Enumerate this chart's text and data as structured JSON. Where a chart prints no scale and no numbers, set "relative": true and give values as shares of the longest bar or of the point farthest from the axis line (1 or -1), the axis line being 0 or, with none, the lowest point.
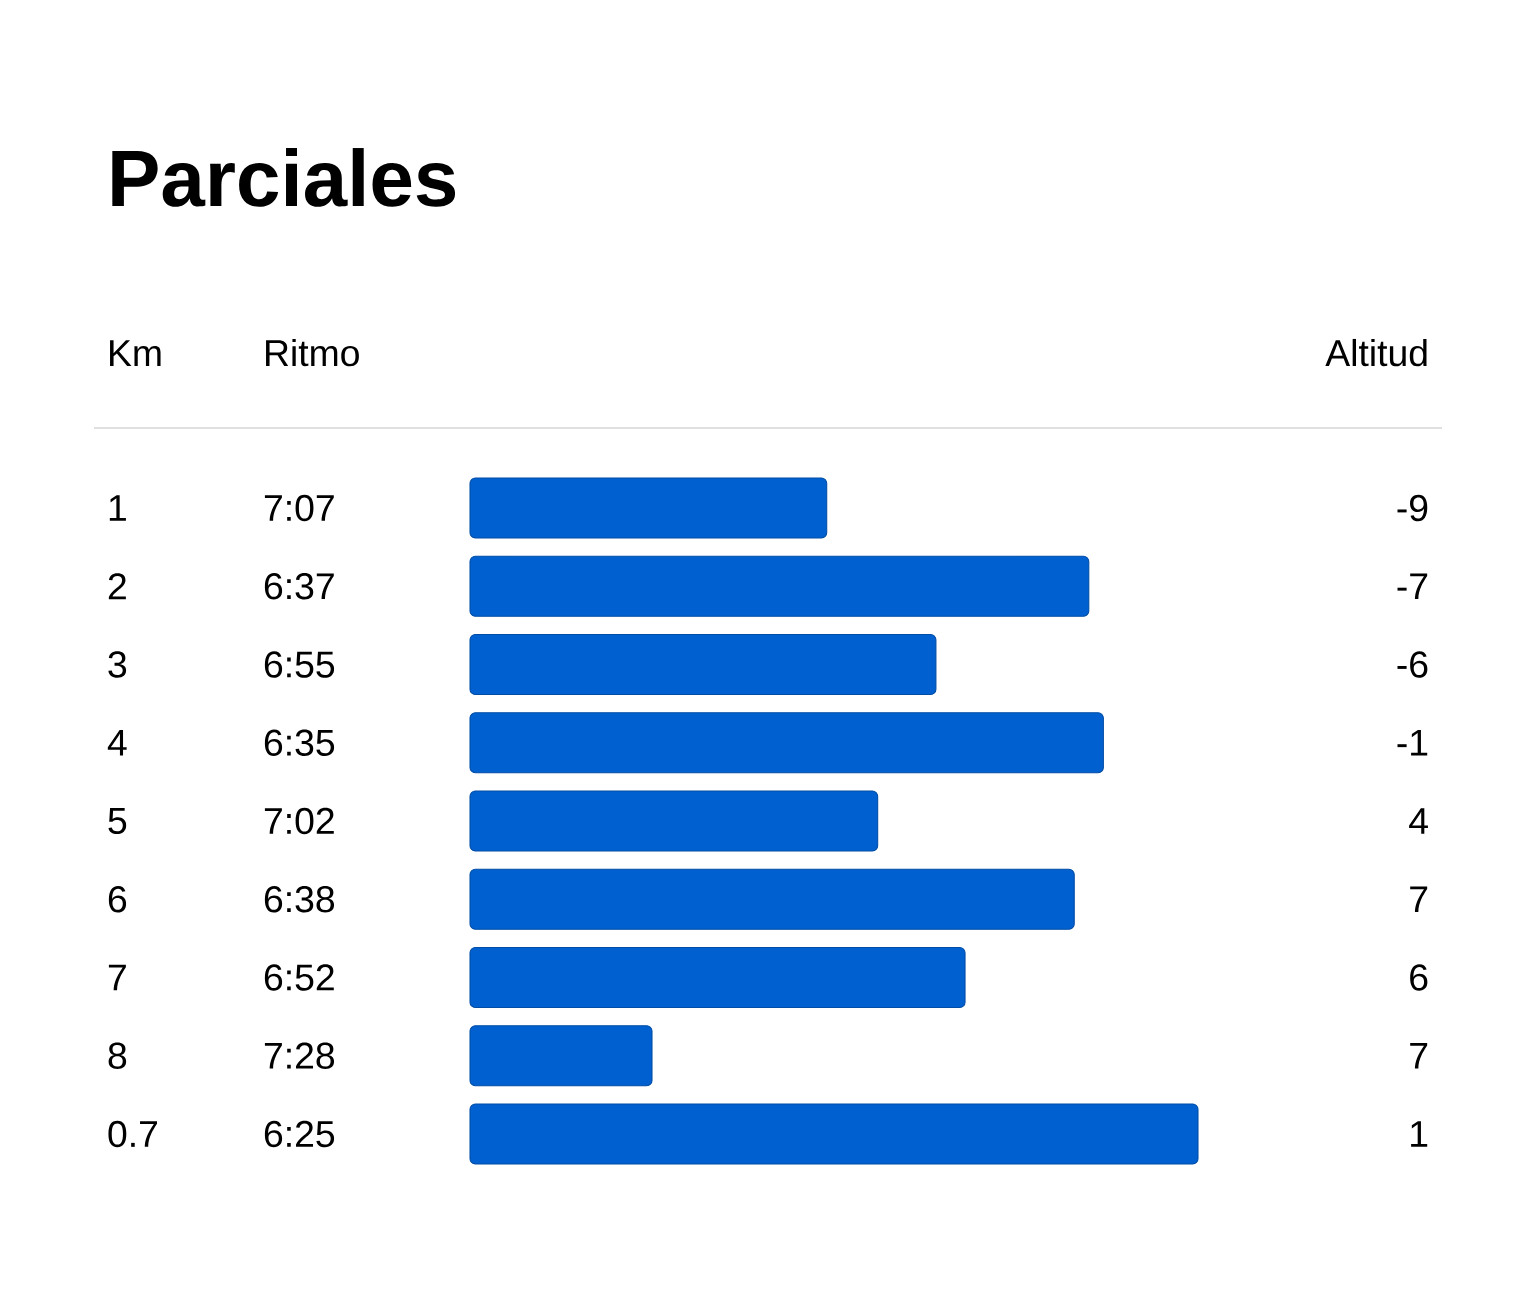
{
  "chart_data": {
    "type": "bar",
    "orientation": "horizontal",
    "relative": true,
    "title": "Parciales",
    "categories": [
      "1",
      "2",
      "3",
      "4",
      "5",
      "6",
      "7",
      "8",
      "0.7"
    ],
    "values": [
      0.49,
      0.85,
      0.64,
      0.87,
      0.56,
      0.83,
      0.68,
      0.25,
      1.0
    ],
    "color": "#0060cf",
    "annotations": [
      "Km",
      "Ritmo",
      "Altitud",
      "7:07",
      "6:37",
      "6:55",
      "6:35",
      "7:02",
      "6:38",
      "6:52",
      "7:28",
      "6:25",
      "-9",
      "-7",
      "-6",
      "-1",
      "4",
      "7",
      "6",
      "7",
      "1"
    ]
  }
}
